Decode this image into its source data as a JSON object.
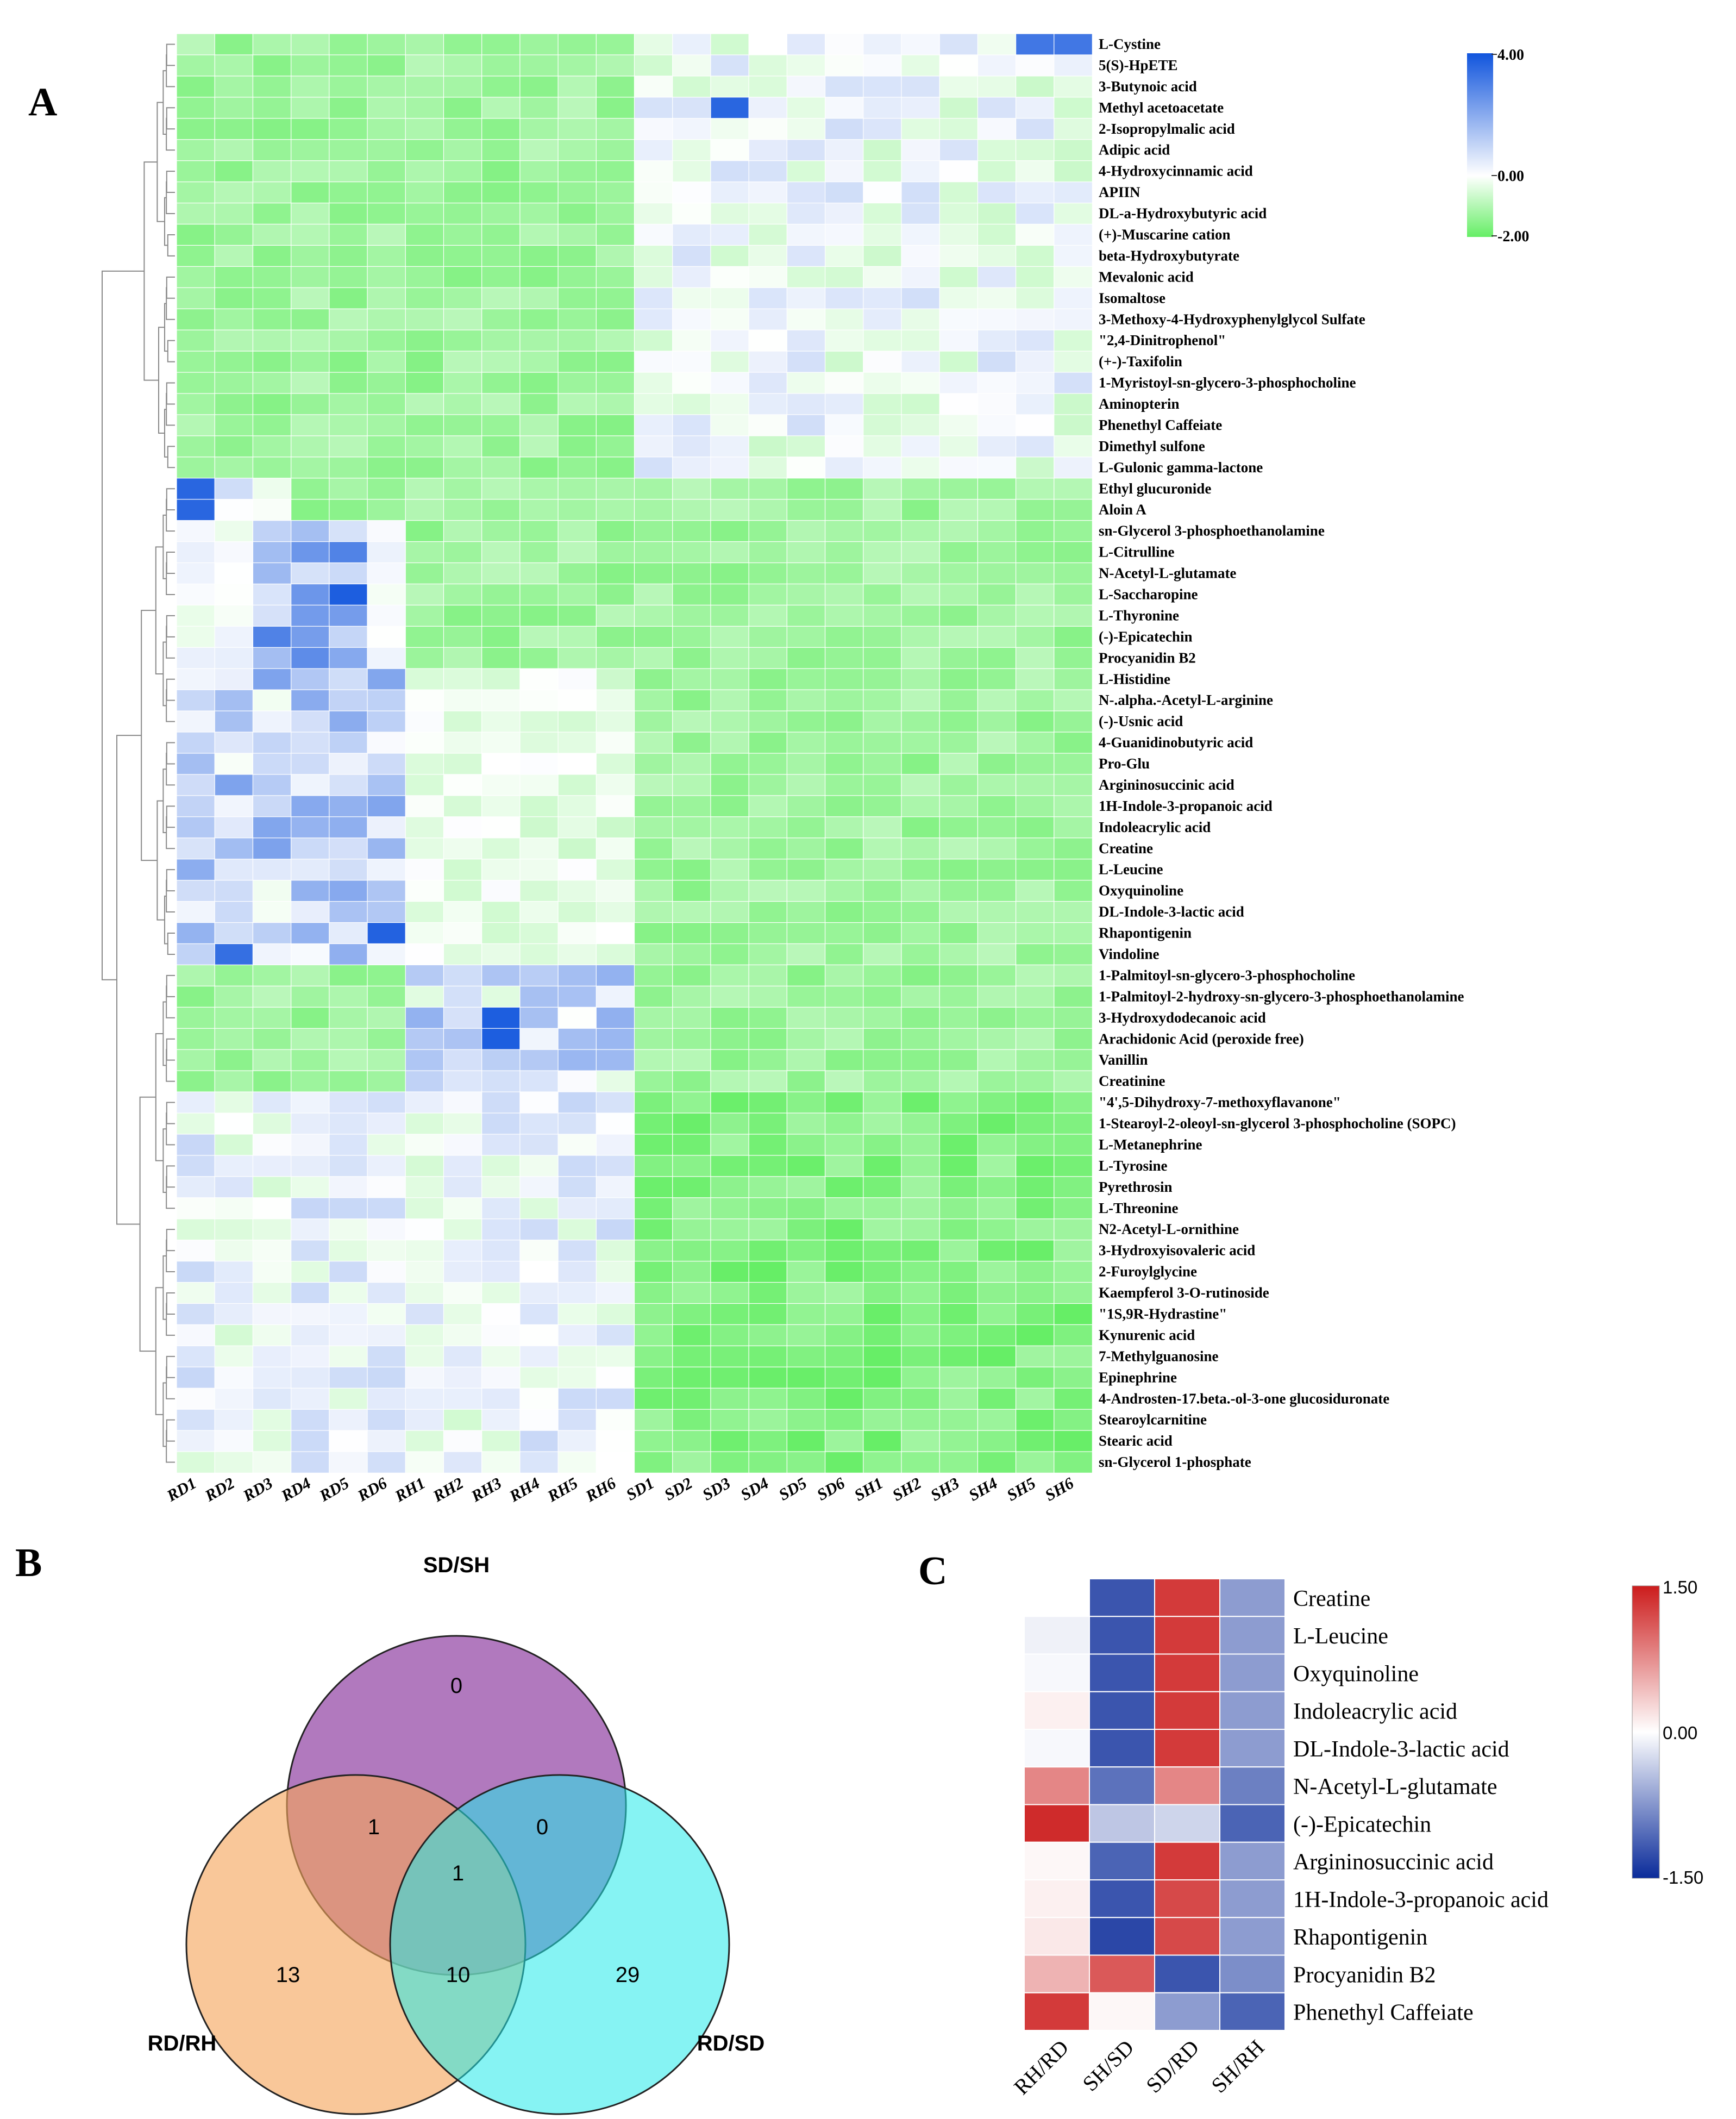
{
  "panels": {
    "a": "A",
    "b": "B",
    "c": "C"
  },
  "heatmap_a": {
    "type": "heatmap",
    "columns": [
      "RD1",
      "RD2",
      "RD3",
      "RD4",
      "RD5",
      "RD6",
      "RH1",
      "RH2",
      "RH3",
      "RH4",
      "RH5",
      "RH6",
      "SD1",
      "SD2",
      "SD3",
      "SD4",
      "SD5",
      "SD6",
      "SH1",
      "SH2",
      "SH3",
      "SH4",
      "SH5",
      "SH6"
    ],
    "rows": [
      "L-Cystine",
      "5(S)-HpETE",
      "3-Butynoic acid",
      "Methyl acetoacetate",
      "2-Isopropylmalic acid",
      "Adipic acid",
      "4-Hydroxycinnamic acid",
      "APIIN",
      "DL-a-Hydroxybutyric acid",
      "(+)-Muscarine cation",
      "beta-Hydroxybutyrate",
      "Mevalonic acid",
      "Isomaltose",
      "3-Methoxy-4-Hydroxyphenylglycol Sulfate",
      "\"2,4-Dinitrophenol\"",
      "(+-)-Taxifolin",
      "1-Myristoyl-sn-glycero-3-phosphocholine",
      "Aminopterin",
      "Phenethyl Caffeiate",
      "Dimethyl sulfone",
      "L-Gulonic gamma-lactone",
      "Ethyl glucuronide",
      "Aloin A",
      "sn-Glycerol 3-phosphoethanolamine",
      "L-Citrulline",
      "N-Acetyl-L-glutamate",
      "L-Saccharopine",
      "L-Thyronine",
      "(-)-Epicatechin",
      "Procyanidin B2",
      "L-Histidine",
      "N-.alpha.-Acetyl-L-arginine",
      "(-)-Usnic acid",
      "4-Guanidinobutyric acid",
      "Pro-Glu",
      "Argininosuccinic acid",
      "1H-Indole-3-propanoic acid",
      "Indoleacrylic acid",
      "Creatine",
      "L-Leucine",
      "Oxyquinoline",
      "DL-Indole-3-lactic acid",
      "Rhapontigenin",
      "Vindoline",
      "1-Palmitoyl-sn-glycero-3-phosphocholine",
      "1-Palmitoyl-2-hydroxy-sn-glycero-3-phosphoethanolamine",
      "3-Hydroxydodecanoic acid",
      "Arachidonic Acid (peroxide free)",
      "Vanillin",
      "Creatinine",
      "\"4',5-Dihydroxy-7-methoxyflavanone\"",
      "1-Stearoyl-2-oleoyl-sn-glycerol 3-phosphocholine (SOPC)",
      "L-Metanephrine",
      "L-Tyrosine",
      "Pyrethrosin",
      "L-Threonine",
      "N2-Acetyl-L-ornithine",
      "3-Hydroxyisovaleric acid",
      "2-Furoylglycine",
      "Kaempferol 3-O-rutinoside",
      "\"1S,9R-Hydrastine\"",
      "Kynurenic acid",
      "7-Methylguanosine",
      "Epinephrine",
      "4-Androsten-17.beta.-ol-3-one glucosiduronate",
      "Stearoylcarnitine",
      "Stearic acid",
      "sn-Glycerol 1-phosphate"
    ],
    "legend": {
      "max_label": "4.00",
      "mid_label": "0.00",
      "min_label": "-2.00",
      "max": 4,
      "mid": 0,
      "min": -2,
      "colors": [
        "#66ee66",
        "#ffffff",
        "#1155dd"
      ]
    }
  },
  "venn": {
    "sets": [
      "SD/SH",
      "RD/RH",
      "RD/SD"
    ],
    "labels": {
      "top": "SD/SH",
      "left": "RD/RH",
      "right": "RD/SD"
    },
    "counts": {
      "top_only": "0",
      "top_left": "1",
      "top_right": "0",
      "center": "1",
      "left_only": "13",
      "left_right": "10",
      "right_only": "29"
    },
    "colors": {
      "top": "#a05bb0",
      "left": "#f5a55a",
      "right": "#33ecec"
    }
  },
  "chart_data": [
    {
      "type": "heatmap",
      "panel": "A",
      "x": [
        "RD1",
        "RD2",
        "RD3",
        "RD4",
        "RD5",
        "RD6",
        "RH1",
        "RH2",
        "RH3",
        "RH4",
        "RH5",
        "RH6",
        "SD1",
        "SD2",
        "SD3",
        "SD4",
        "SD5",
        "SD6",
        "SH1",
        "SH2",
        "SH3",
        "SH4",
        "SH5",
        "SH6"
      ],
      "y_count": 68,
      "color_range": [
        -2,
        4
      ]
    },
    {
      "type": "heatmap",
      "panel": "C",
      "x": [
        "RH/RD",
        "SH/SD",
        "SD/RD",
        "SH/RH"
      ],
      "y": [
        "Creatine",
        "L-Leucine",
        "Oxyquinoline",
        "Indoleacrylic acid",
        "DL-Indole-3-lactic acid",
        "N-Acetyl-L-glutamate",
        "(-)-Epicatechin",
        "Argininosuccinic acid",
        "1H-Indole-3-propanoic acid",
        "Rhapontigenin",
        "Procyanidin B2",
        "Phenethyl Caffeiate"
      ],
      "values": [
        [
          0.0,
          -1.2,
          1.3,
          -0.7
        ],
        [
          -0.1,
          -1.2,
          1.3,
          -0.7
        ],
        [
          -0.05,
          -1.2,
          1.3,
          -0.7
        ],
        [
          0.1,
          -1.2,
          1.3,
          -0.7
        ],
        [
          -0.05,
          -1.2,
          1.3,
          -0.7
        ],
        [
          0.8,
          -1.0,
          0.8,
          -0.9
        ],
        [
          1.4,
          -0.4,
          -0.3,
          -1.1
        ],
        [
          0.05,
          -1.1,
          1.3,
          -0.7
        ],
        [
          0.1,
          -1.2,
          1.2,
          -0.7
        ],
        [
          0.15,
          -1.3,
          1.2,
          -0.7
        ],
        [
          0.5,
          1.1,
          -1.2,
          -0.8
        ],
        [
          1.3,
          0.05,
          -0.7,
          -1.1
        ]
      ],
      "color_range": [
        -1.5,
        1.5
      ],
      "legend": {
        "max_label": "1.50",
        "mid_label": "0.00",
        "min_label": "-1.50",
        "colors": [
          "#0a2b9a",
          "#ffffff",
          "#cc1c1c"
        ]
      }
    }
  ]
}
